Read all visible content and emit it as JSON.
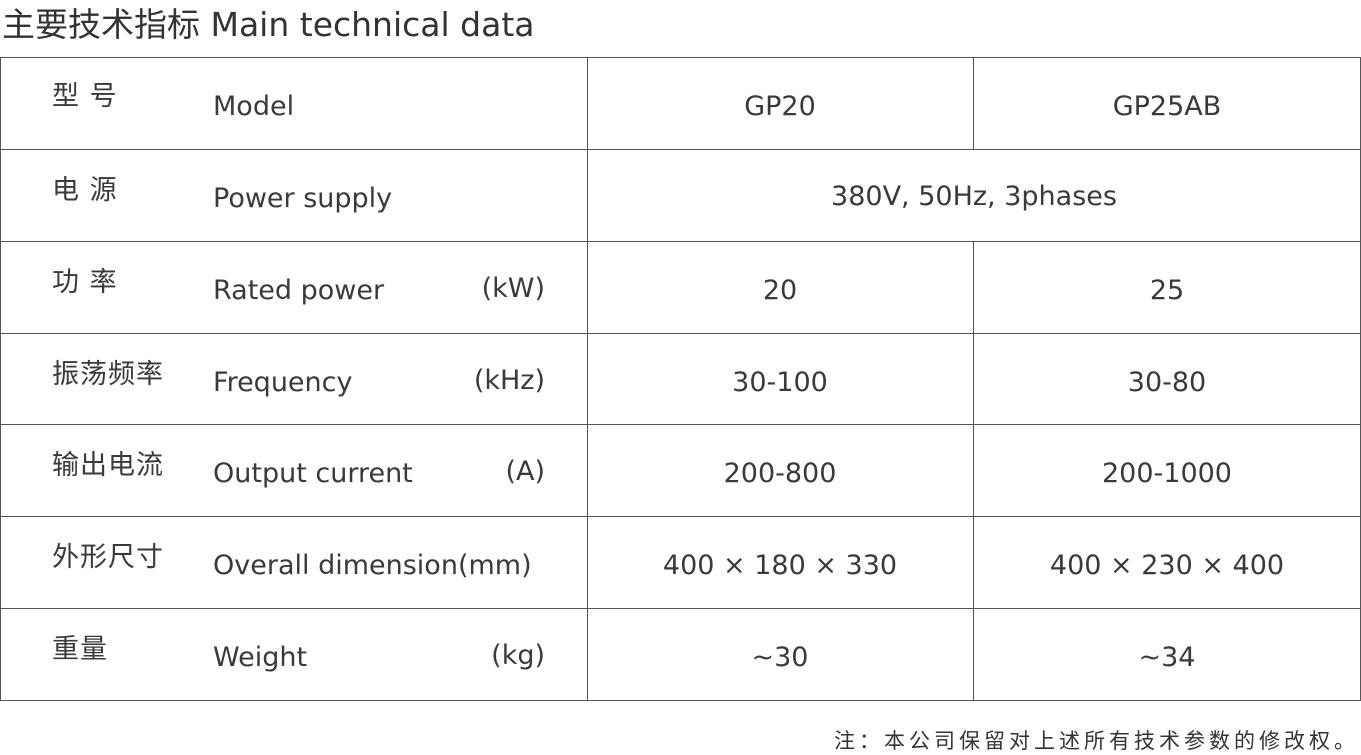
{
  "title": "主要技术指标 Main technical data",
  "table": {
    "rows": [
      {
        "zh": "型  号",
        "en": "Model",
        "values": [
          "GP20",
          "GP25AB"
        ]
      },
      {
        "zh": "电  源",
        "en": "Power supply",
        "values": [
          "380V, 50Hz, 3phases"
        ]
      },
      {
        "zh": "功  率",
        "en": "Rated power",
        "unit": "(kW)",
        "values": [
          "20",
          "25"
        ]
      },
      {
        "zh": "振荡频率",
        "en": "Frequency",
        "unit": "(kHz)",
        "values": [
          "30-100",
          "30-80"
        ]
      },
      {
        "zh": "输出电流",
        "en": "Output current",
        "unit": "(A)",
        "values": [
          "200-800",
          "200-1000"
        ]
      },
      {
        "zh": "外形尺寸",
        "en": "Overall dimension(mm)",
        "values": [
          "400 × 180 × 330",
          "400 × 230 × 400"
        ]
      },
      {
        "zh": "重量",
        "en": "Weight",
        "unit": "(kg)",
        "values": [
          "~30",
          "~34"
        ]
      }
    ]
  },
  "footnote": "注：本公司保留对上述所有技术参数的修改权。"
}
